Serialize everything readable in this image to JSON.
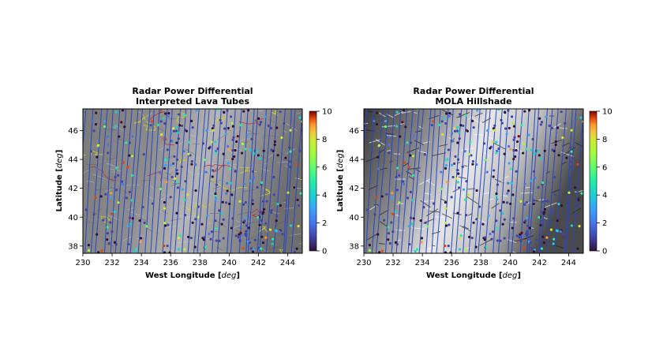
{
  "chart_data": [
    {
      "type": "scatter",
      "title": "Radar Power Differential",
      "subtitle": "Interpreted Lava Tubes",
      "xlabel_main": "West Longitude ",
      "xlabel_unit": "deg",
      "ylabel_main": "Latitude ",
      "ylabel_unit": "deg",
      "xlim": [
        230,
        245
      ],
      "ylim": [
        37.5,
        47.5
      ],
      "xticks": [
        "230",
        "232",
        "234",
        "236",
        "238",
        "240",
        "242",
        "244"
      ],
      "yticks": [
        "38",
        "40",
        "42",
        "44",
        "46"
      ],
      "background": "hillshade with interpreted lava tube outlines (yellow/red)",
      "colorbar": {
        "min": 0,
        "max": 10,
        "ticks": [
          "0",
          "2",
          "4",
          "6",
          "8",
          "10"
        ],
        "colormap": "turbo"
      }
    },
    {
      "type": "scatter",
      "title": "Radar Power Differential",
      "subtitle": "MOLA Hillshade",
      "xlabel_main": "West Longitude ",
      "xlabel_unit": "deg",
      "ylabel_main": "Latitude ",
      "ylabel_unit": "deg",
      "xlim": [
        230,
        245
      ],
      "ylim": [
        37.5,
        47.5
      ],
      "xticks": [
        "230",
        "232",
        "234",
        "236",
        "238",
        "240",
        "242",
        "244"
      ],
      "yticks": [
        "38",
        "40",
        "42",
        "44",
        "46"
      ],
      "background": "MOLA hillshade",
      "colorbar": {
        "min": 0,
        "max": 10,
        "ticks": [
          "0",
          "2",
          "4",
          "6",
          "8",
          "10"
        ],
        "colormap": "turbo"
      }
    }
  ],
  "colors": {
    "track": "#2846c8",
    "lava_tube_yellow": "#d8d020",
    "lava_tube_red": "#c03030"
  }
}
